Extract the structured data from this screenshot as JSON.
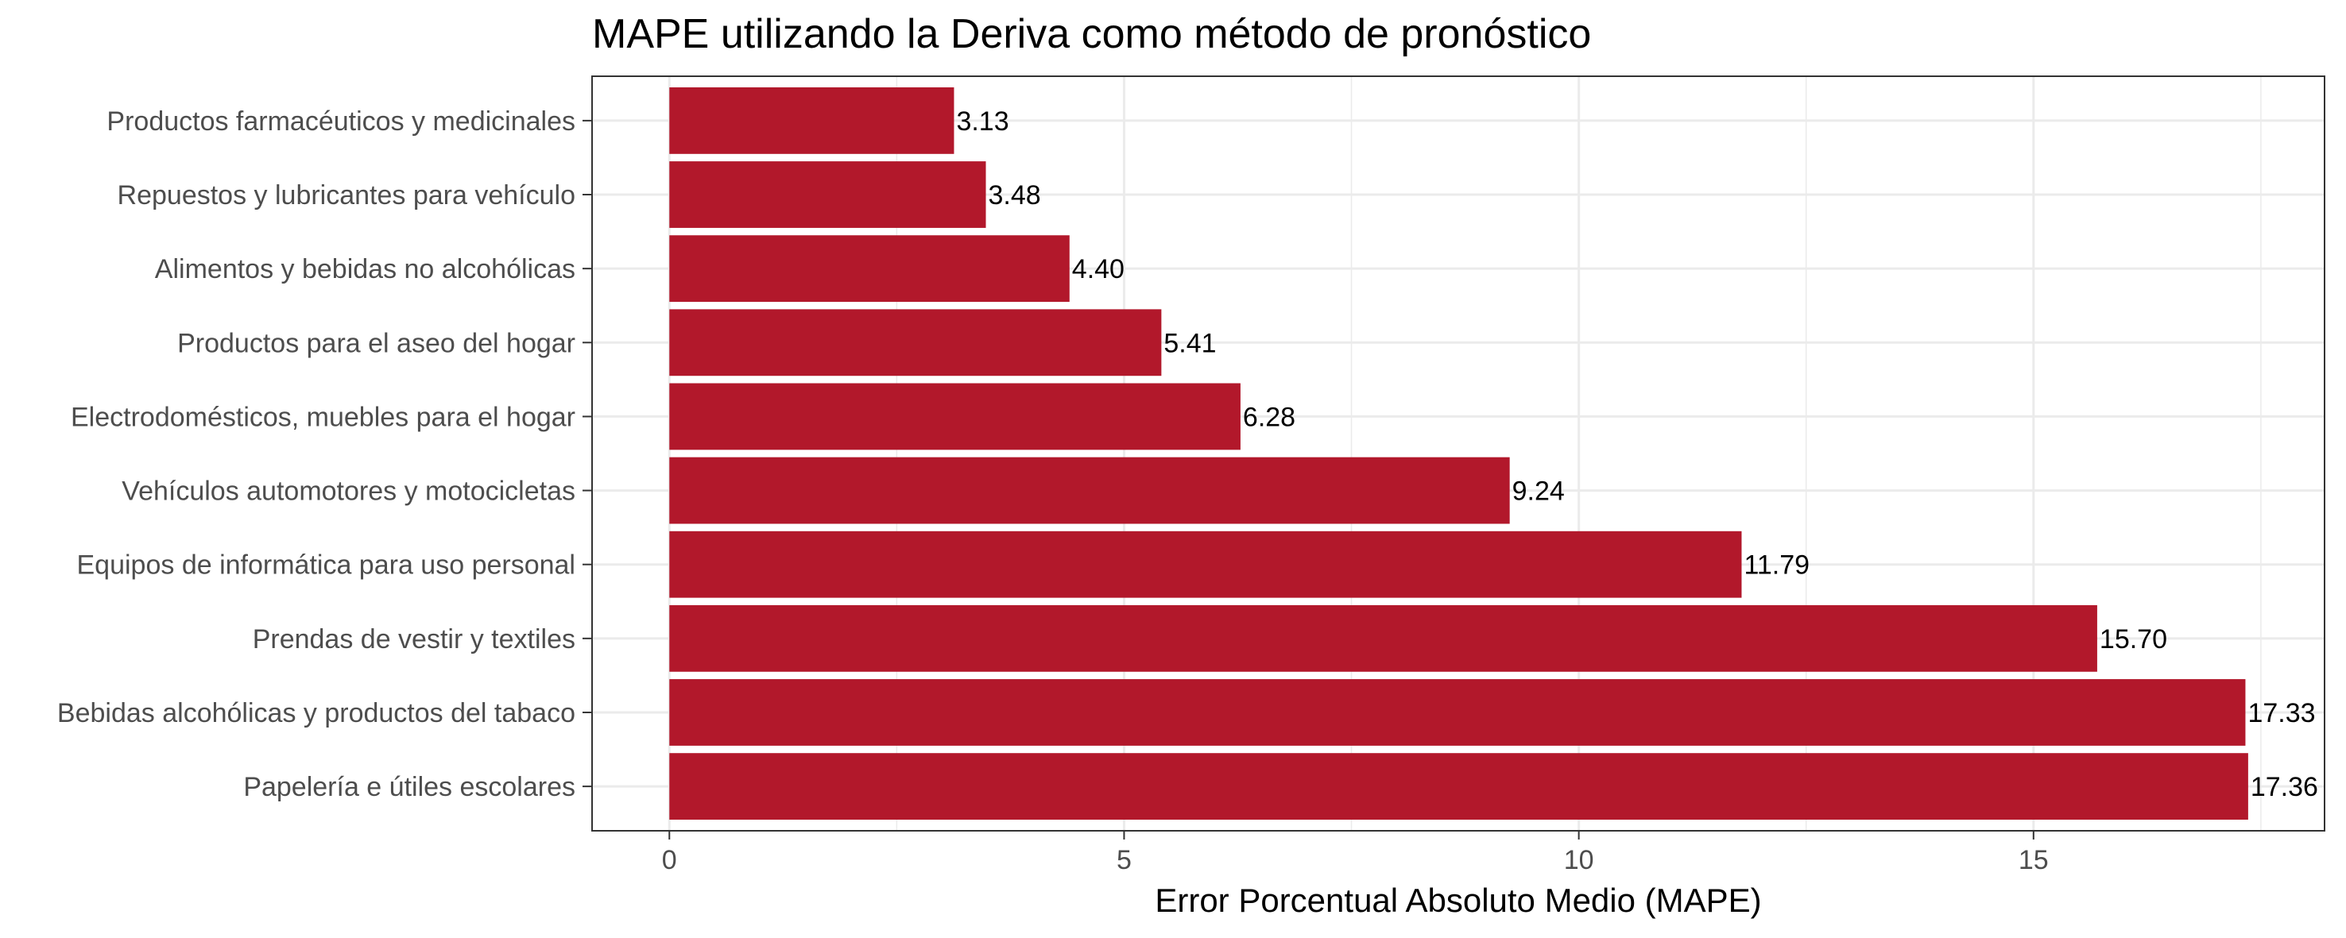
{
  "chart_data": {
    "type": "bar",
    "orientation": "horizontal",
    "title": "MAPE utilizando la Deriva como método de pronóstico",
    "xlabel": "Error Porcentual Absoluto Medio (MAPE)",
    "ylabel": "",
    "categories": [
      "Productos farmacéuticos y medicinales",
      "Repuestos y lubricantes para vehículo",
      "Alimentos y bebidas no alcohólicas",
      "Productos para el aseo del hogar",
      "Electrodomésticos, muebles para el hogar",
      "Vehículos automotores y motocicletas",
      "Equipos de informática para uso personal",
      "Prendas de vestir y textiles",
      "Bebidas alcohólicas y productos del tabaco",
      "Papelería e útiles escolares"
    ],
    "values": [
      3.13,
      3.48,
      4.4,
      5.41,
      6.28,
      9.24,
      11.79,
      15.7,
      17.33,
      17.36
    ],
    "value_labels": [
      "3.13",
      "3.48",
      "4.40",
      "5.41",
      "6.28",
      "9.24",
      "11.79",
      "15.70",
      "17.33",
      "17.36"
    ],
    "xlim": [
      -0.85,
      18.2
    ],
    "xticks": [
      0,
      5,
      10,
      15
    ],
    "xtick_labels": [
      "0",
      "5",
      "10",
      "15"
    ],
    "grid": true,
    "legend": "none",
    "colors": {
      "bar": "#b2182b",
      "grid": "#ebebeb",
      "panel_border": "#333333",
      "tick_text": "#4d4d4d"
    }
  }
}
